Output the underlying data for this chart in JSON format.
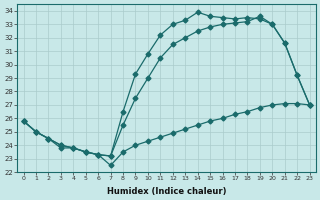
{
  "xlabel": "Humidex (Indice chaleur)",
  "bg_color": "#c8e8e8",
  "line_color": "#1a6b6b",
  "grid_color": "#aacccc",
  "xlim": [
    -0.5,
    23.5
  ],
  "ylim": [
    22,
    34.5
  ],
  "yticks": [
    22,
    23,
    24,
    25,
    26,
    27,
    28,
    29,
    30,
    31,
    32,
    33,
    34
  ],
  "xticks": [
    0,
    1,
    2,
    3,
    4,
    5,
    6,
    7,
    8,
    9,
    10,
    11,
    12,
    13,
    14,
    15,
    16,
    17,
    18,
    19,
    20,
    21,
    22,
    23
  ],
  "line1_x": [
    0,
    1,
    2,
    3,
    4,
    5,
    6,
    7,
    8,
    9,
    10,
    11,
    12,
    13,
    14,
    15,
    16,
    17,
    18,
    19,
    20,
    21,
    22,
    23
  ],
  "line1_y": [
    25.8,
    25.0,
    24.5,
    24.0,
    23.8,
    23.5,
    23.3,
    23.2,
    26.5,
    29.3,
    30.8,
    32.2,
    33.0,
    33.3,
    33.9,
    33.6,
    33.5,
    33.4,
    33.5,
    33.4,
    33.0,
    31.6,
    29.2,
    27.0
  ],
  "line2_x": [
    0,
    1,
    2,
    3,
    4,
    5,
    6,
    7,
    8,
    9,
    10,
    11,
    12,
    13,
    14,
    15,
    16,
    17,
    18,
    19,
    20,
    21,
    22,
    23
  ],
  "line2_y": [
    25.8,
    25.0,
    24.5,
    24.0,
    23.8,
    23.5,
    23.3,
    23.2,
    25.5,
    27.5,
    29.0,
    30.5,
    31.5,
    32.0,
    32.5,
    32.8,
    33.0,
    33.1,
    33.2,
    33.6,
    33.0,
    31.6,
    29.2,
    27.0
  ],
  "line3_x": [
    0,
    1,
    2,
    3,
    4,
    5,
    6,
    7,
    8,
    9,
    10,
    11,
    12,
    13,
    14,
    15,
    16,
    17,
    18,
    19,
    20,
    21,
    22,
    23
  ],
  "line3_y": [
    25.8,
    25.0,
    24.5,
    23.8,
    23.8,
    23.5,
    23.3,
    22.5,
    23.5,
    24.0,
    24.3,
    24.6,
    24.9,
    25.2,
    25.5,
    25.8,
    26.0,
    26.3,
    26.5,
    26.8,
    27.0,
    27.1,
    27.1,
    27.0
  ]
}
